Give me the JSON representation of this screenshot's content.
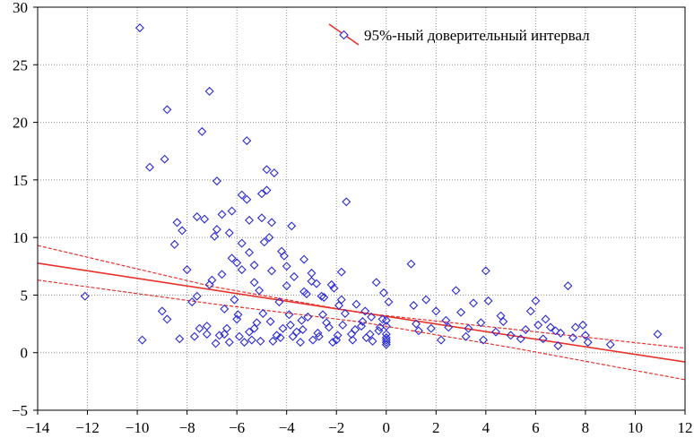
{
  "chart_data": {
    "type": "scatter",
    "title": "",
    "xlabel": "",
    "ylabel": "",
    "xlim": [
      -14,
      12
    ],
    "ylim": [
      -5,
      30
    ],
    "xticks": [
      -14,
      -12,
      -10,
      -8,
      -6,
      -4,
      -2,
      0,
      2,
      4,
      6,
      8,
      10,
      12
    ],
    "yticks": [
      -5,
      0,
      5,
      10,
      15,
      20,
      25,
      30
    ],
    "tick_labels_x": [
      "−14",
      "−12",
      "−10",
      "−8",
      "−6",
      "−4",
      "−2",
      "0",
      "2",
      "4",
      "6",
      "8",
      "10",
      "12"
    ],
    "tick_labels_y": [
      "−5",
      "0",
      "5",
      "10",
      "15",
      "20",
      "25",
      "30"
    ],
    "grid": true,
    "legend_position": "top-right",
    "legend_label": "95%-ный доверительный интервал",
    "colors": {
      "points": "#2a2ad6",
      "fit": "#e8312a",
      "grid": "#8f8f8f",
      "axis": "#000000"
    },
    "regression": {
      "intercept": 3.15,
      "slope": -0.33
    },
    "confidence_band": {
      "upper": [
        [
          -14,
          9.3
        ],
        [
          -7,
          5.75
        ],
        [
          -1,
          3.45
        ],
        [
          5,
          2.05
        ],
        [
          12,
          0.4
        ]
      ],
      "lower": [
        [
          -14,
          6.3
        ],
        [
          -7,
          4.25
        ],
        [
          -1,
          2.65
        ],
        [
          5,
          0.45
        ],
        [
          12,
          -2.35
        ]
      ]
    },
    "points": [
      [
        -12.1,
        4.9
      ],
      [
        -9.9,
        28.2
      ],
      [
        -9.8,
        1.1
      ],
      [
        -9.5,
        16.1
      ],
      [
        -9,
        3.6
      ],
      [
        -8.9,
        16.8
      ],
      [
        -8.8,
        21.1
      ],
      [
        -8.8,
        2.9
      ],
      [
        -8.5,
        9.4
      ],
      [
        -8.4,
        11.3
      ],
      [
        -8.3,
        1.2
      ],
      [
        -8.2,
        10.6
      ],
      [
        -8,
        7.2
      ],
      [
        -7.8,
        4.4
      ],
      [
        -7.7,
        1.4
      ],
      [
        -7.6,
        11.8
      ],
      [
        -7.5,
        2.1
      ],
      [
        -7.4,
        19.2
      ],
      [
        -7.3,
        11.6
      ],
      [
        -7.2,
        1.6
      ],
      [
        -7.1,
        22.7
      ],
      [
        -7,
        6.3
      ],
      [
        -6.9,
        10.1
      ],
      [
        -6.8,
        14.9
      ],
      [
        -6.8,
        10.7
      ],
      [
        -6.7,
        1.5
      ],
      [
        -6.6,
        12
      ],
      [
        -6.5,
        3.8
      ],
      [
        -6.4,
        2.1
      ],
      [
        -6.3,
        10.4
      ],
      [
        -6.2,
        12.3
      ],
      [
        -6.2,
        8.2
      ],
      [
        -6.1,
        4.6
      ],
      [
        -6,
        2.9
      ],
      [
        -5.9,
        1.4
      ],
      [
        -5.8,
        13.7
      ],
      [
        -5.8,
        9.5
      ],
      [
        -5.8,
        7.2
      ],
      [
        -5.6,
        18.4
      ],
      [
        -5.6,
        13.3
      ],
      [
        -5.5,
        11.5
      ],
      [
        -5.5,
        8.7
      ],
      [
        -5.4,
        1.1
      ],
      [
        -5.3,
        6.1
      ],
      [
        -5.2,
        2.6
      ],
      [
        -5,
        13.8
      ],
      [
        -5,
        11.7
      ],
      [
        -4.9,
        9.6
      ],
      [
        -4.8,
        15.9
      ],
      [
        -4.8,
        14.1
      ],
      [
        -4.7,
        10
      ],
      [
        -4.6,
        11.3
      ],
      [
        -4.5,
        15.6
      ],
      [
        -4.4,
        1.5
      ],
      [
        -4.3,
        4.4
      ],
      [
        -4.2,
        8.8
      ],
      [
        -4.1,
        8.4
      ],
      [
        -4,
        7.5
      ],
      [
        -3.9,
        3.3
      ],
      [
        -3.8,
        11
      ],
      [
        -3.6,
        1.8
      ],
      [
        -3.4,
        2.8
      ],
      [
        -3.3,
        8.1
      ],
      [
        -3.2,
        5.1
      ],
      [
        -3,
        6.9
      ],
      [
        -2.8,
        6
      ],
      [
        -2.7,
        1.4
      ],
      [
        -2.5,
        4.8
      ],
      [
        -2.3,
        2.2
      ],
      [
        -2.1,
        5.6
      ],
      [
        -2,
        1.1
      ],
      [
        -1.9,
        4.1
      ],
      [
        -1.8,
        7
      ],
      [
        -1.6,
        13.1
      ],
      [
        -1.4,
        1.6
      ],
      [
        -1.2,
        4.2
      ],
      [
        -1,
        2.3
      ],
      [
        -0.8,
        1.3
      ],
      [
        -0.6,
        3.1
      ],
      [
        -0.4,
        6.1
      ],
      [
        -0.3,
        1.9
      ],
      [
        -0.1,
        5.2
      ],
      [
        0,
        1.1
      ],
      [
        0,
        0.7
      ],
      [
        0,
        2.3
      ],
      [
        0.1,
        4.4
      ],
      [
        1,
        7.7
      ],
      [
        1.1,
        4.1
      ],
      [
        1.3,
        1.9
      ],
      [
        1.6,
        4.6
      ],
      [
        2,
        3.6
      ],
      [
        2.2,
        1.1
      ],
      [
        2.5,
        2.2
      ],
      [
        2.8,
        5.4
      ],
      [
        3,
        3.5
      ],
      [
        3.2,
        1.4
      ],
      [
        3.5,
        4.3
      ],
      [
        3.8,
        2.6
      ],
      [
        4,
        7.1
      ],
      [
        4.1,
        4.5
      ],
      [
        4.4,
        1.8
      ],
      [
        4.7,
        2.7
      ],
      [
        5,
        1.5
      ],
      [
        5.4,
        1.2
      ],
      [
        5.8,
        3.6
      ],
      [
        6,
        4.5
      ],
      [
        6.1,
        2.4
      ],
      [
        6.3,
        1.2
      ],
      [
        6.6,
        2.2
      ],
      [
        6.9,
        0.6
      ],
      [
        7,
        1.7
      ],
      [
        7.3,
        5.8
      ],
      [
        7.5,
        1.3
      ],
      [
        7.9,
        2.4
      ],
      [
        8.1,
        0.9
      ],
      [
        9,
        0.7
      ],
      [
        10.9,
        1.6
      ],
      [
        -6.3,
        0.9
      ],
      [
        -5.95,
        3.3
      ],
      [
        -5.5,
        1.8
      ],
      [
        -5.05,
        1
      ],
      [
        -4.65,
        2.7
      ],
      [
        -4.25,
        1.3
      ],
      [
        -3.85,
        2.4
      ],
      [
        -3.45,
        0.9
      ],
      [
        -3.15,
        3.1
      ],
      [
        -2.75,
        1.7
      ],
      [
        -2.4,
        2.6
      ],
      [
        -1.95,
        1.5
      ],
      [
        -1.65,
        3.4
      ],
      [
        -1.25,
        2
      ],
      [
        -0.85,
        3.6
      ],
      [
        -0.55,
        1
      ],
      [
        -0.15,
        2.9
      ],
      [
        -7.2,
        2.3
      ],
      [
        -6.85,
        0.8
      ],
      [
        -6.5,
        1.6
      ],
      [
        -5.7,
        0.9
      ],
      [
        -5.3,
        2.1
      ],
      [
        -4.95,
        3.4
      ],
      [
        -4.55,
        1
      ],
      [
        -4.15,
        2.1
      ],
      [
        -3.75,
        1.4
      ],
      [
        -3.35,
        2
      ],
      [
        -2.95,
        1.1
      ],
      [
        -2.55,
        3.3
      ],
      [
        -2.15,
        0.9
      ],
      [
        -1.75,
        2.4
      ],
      [
        -1.35,
        1.1
      ],
      [
        -0.95,
        2.7
      ],
      [
        -0.65,
        1.6
      ],
      [
        -0.25,
        2.2
      ],
      [
        0,
        1.6
      ],
      [
        0,
        0.9
      ],
      [
        0,
        2.8
      ],
      [
        0,
        1.3
      ],
      [
        1.2,
        2.5
      ],
      [
        1.8,
        2.1
      ],
      [
        2.4,
        2.8
      ],
      [
        3.3,
        2.1
      ],
      [
        3.9,
        1.1
      ],
      [
        4.6,
        3.2
      ],
      [
        5.6,
        2
      ],
      [
        6.4,
        2.9
      ],
      [
        6.8,
        1.9
      ],
      [
        7.6,
        2.2
      ],
      [
        8,
        1.5
      ],
      [
        -6.0,
        7.8
      ],
      [
        -5.3,
        7.6
      ],
      [
        -4.6,
        7.1
      ],
      [
        -3.7,
        6.6
      ],
      [
        -3.0,
        6.2
      ],
      [
        -2.2,
        5.9
      ],
      [
        -4.0,
        5.8
      ],
      [
        -3.3,
        5.3
      ],
      [
        -2.6,
        4.9
      ],
      [
        -1.8,
        4.6
      ],
      [
        -5.1,
        5.4
      ],
      [
        -6.6,
        6.8
      ],
      [
        -7.1,
        5.9
      ],
      [
        -7.6,
        4.9
      ]
    ]
  }
}
